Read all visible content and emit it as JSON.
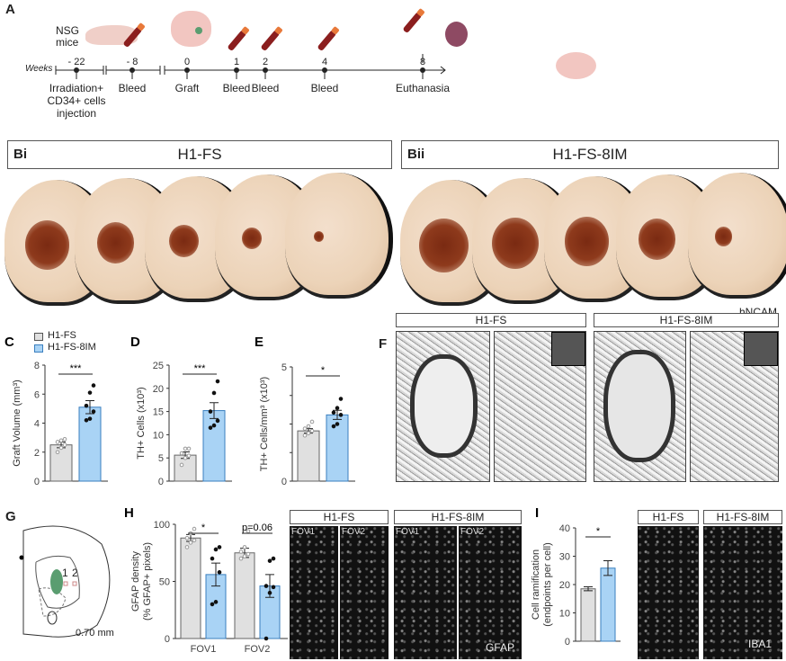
{
  "panelA": {
    "label": "A",
    "mice": "NSG\nmice",
    "weeks_label": "Weeks",
    "timepoints": [
      {
        "week": "- 22",
        "event": "Irradiation+\nCD34+ cells\ninjection"
      },
      {
        "week": "- 8",
        "event": "Bleed"
      },
      {
        "week": "0",
        "event": "Graft"
      },
      {
        "week": "1",
        "event": "Bleed"
      },
      {
        "week": "2",
        "event": "Bleed"
      },
      {
        "week": "4",
        "event": "Bleed"
      },
      {
        "week": "8",
        "event": "Euthanasia"
      }
    ]
  },
  "panelB": {
    "bi_label": "Bi",
    "bi_title": "H1-FS",
    "bii_label": "Bii",
    "bii_title": "H1-FS-8IM",
    "stain": "hNCAM",
    "bi_graft_sizes": [
      0.9,
      0.75,
      0.6,
      0.4,
      0.2
    ],
    "bii_graft_sizes": [
      1.0,
      0.95,
      0.9,
      0.75,
      0.35
    ]
  },
  "legend": {
    "g1": "H1-FS",
    "g2": "H1-FS-8IM",
    "colors": {
      "g1": "#e0e0e0",
      "g2": "#a9d3f5"
    }
  },
  "panelF": {
    "label": "F",
    "h1": "H1-FS",
    "h2": "H1-FS-8IM"
  },
  "panelG": {
    "label": "G",
    "n1": "1",
    "n2": "2",
    "coord": "0.70 mm"
  },
  "panelH": {
    "h1": "H1-FS",
    "h2": "H1-FS-8IM",
    "fov1": "FOV1",
    "fov2": "FOV2",
    "stain": "GFAP"
  },
  "panelI": {
    "h1": "H1-FS",
    "h2": "H1-FS-8IM",
    "stain": "IBA1"
  },
  "chart_data": [
    {
      "id": "C",
      "label": "C",
      "type": "bar",
      "ylabel": "Graft Volume (mm³)",
      "ylim": [
        0,
        8
      ],
      "yticks": [
        "0",
        "2",
        "4",
        "6",
        "8"
      ],
      "categories": [
        "H1-FS",
        "H1-FS-8IM"
      ],
      "values": [
        2.5,
        5.1
      ],
      "err": [
        0.2,
        0.45
      ],
      "points": [
        [
          2.0,
          2.3,
          2.5,
          2.7,
          2.8,
          2.9
        ],
        [
          4.2,
          4.3,
          4.8,
          5.2,
          6.1,
          6.6
        ]
      ],
      "sig": "***"
    },
    {
      "id": "D",
      "label": "D",
      "type": "bar",
      "ylabel": "TH+ Cells (x10³)",
      "ylim": [
        0,
        25
      ],
      "yticks": [
        "0",
        "5",
        "10",
        "15",
        "20",
        "25"
      ],
      "categories": [
        "H1-FS",
        "H1-FS-8IM"
      ],
      "values": [
        5.6,
        15.2
      ],
      "err": [
        0.7,
        1.7
      ],
      "points": [
        [
          3.5,
          5.0,
          5.5,
          6.0,
          7.0,
          7.0
        ],
        [
          11.5,
          12.0,
          13.0,
          15.0,
          19.0,
          21.5
        ]
      ],
      "sig": "***"
    },
    {
      "id": "E",
      "label": "E",
      "type": "bar",
      "ylabel": "TH+ Cells/mm³ (x10³)",
      "ylim": [
        0,
        5
      ],
      "yticks": [
        "0",
        "",
        "",
        "",
        "5"
      ],
      "categories": [
        "H1-FS",
        "H1-FS-8IM"
      ],
      "values": [
        2.2,
        2.9
      ],
      "err": [
        0.1,
        0.2
      ],
      "points": [
        [
          2.0,
          2.1,
          2.2,
          2.3,
          2.4,
          2.6
        ],
        [
          2.4,
          2.5,
          2.9,
          3.0,
          3.2,
          3.6
        ]
      ],
      "sig": "*"
    },
    {
      "id": "H",
      "label": "H",
      "type": "bar",
      "ylabel": "GFAP density\n(% GFAP+ pixels)",
      "ylim": [
        0,
        100
      ],
      "yticks": [
        "0",
        "50",
        "100"
      ],
      "categories": [
        "FOV1",
        "FOV2"
      ],
      "series": [
        {
          "name": "H1-FS",
          "values": [
            88,
            75
          ],
          "err": [
            3,
            4
          ]
        },
        {
          "name": "H1-FS-8IM",
          "values": [
            56,
            46
          ],
          "err": [
            10,
            10
          ]
        }
      ],
      "points": [
        [
          [
            80,
            84,
            86,
            88,
            92,
            96
          ],
          [
            30,
            32,
            58,
            70,
            78,
            80
          ]
        ],
        [
          [
            70,
            72,
            74,
            76,
            80,
            94
          ],
          [
            0,
            40,
            45,
            46,
            68,
            70
          ]
        ]
      ],
      "sig": [
        "*",
        "p=0.06"
      ]
    },
    {
      "id": "I",
      "label": "I",
      "type": "bar",
      "ylabel": "Cell ramification\n(endpoints per cell)",
      "ylim": [
        0,
        40
      ],
      "yticks": [
        "0",
        "10",
        "20",
        "30",
        "40"
      ],
      "categories": [
        "H1-FS",
        "H1-FS-8IM"
      ],
      "values": [
        18.5,
        25.8
      ],
      "err": [
        0.7,
        2.6
      ],
      "sig": "*"
    }
  ]
}
